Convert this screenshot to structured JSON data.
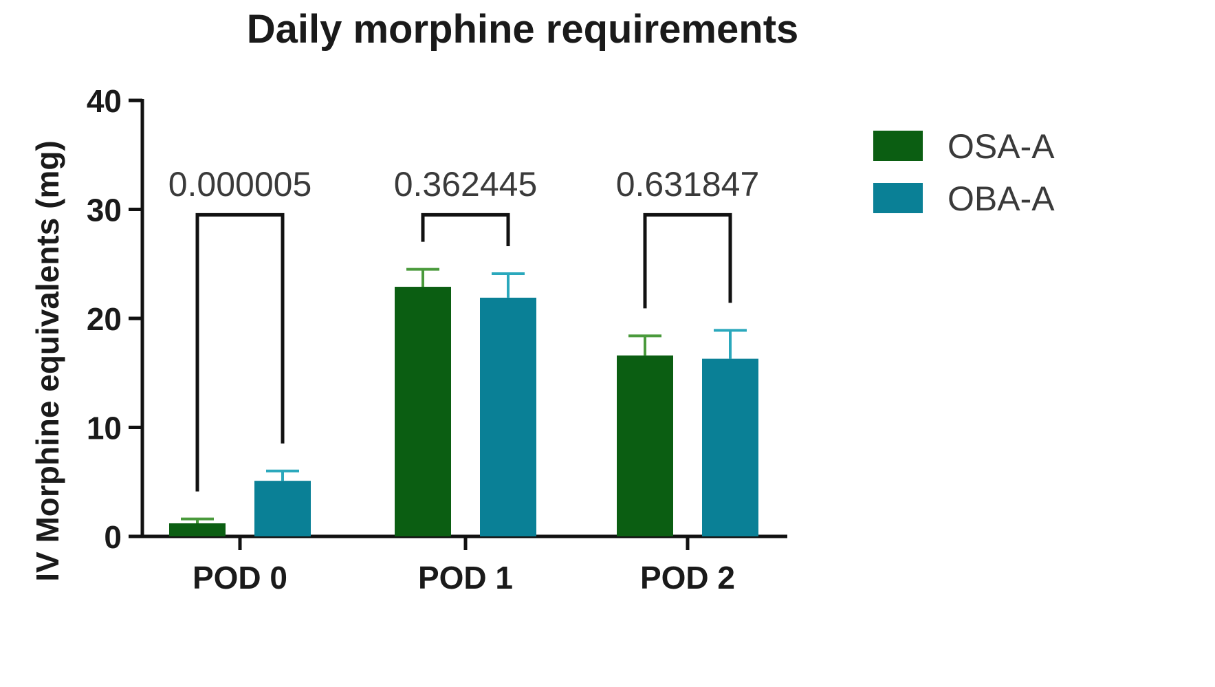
{
  "chart_data": {
    "type": "bar",
    "title": "Daily morphine requirements",
    "xlabel": "",
    "ylabel": "IV Morphine equivalents (mg)",
    "ylim": [
      0,
      40
    ],
    "yticks": [
      0,
      10,
      20,
      30,
      40
    ],
    "categories": [
      "POD 0",
      "POD 1",
      "POD 2"
    ],
    "series": [
      {
        "name": "OSA-A",
        "color": "#0b5e12",
        "errorColor": "#4a9a3c",
        "values": [
          1.2,
          22.9,
          16.6
        ],
        "errors": [
          0.4,
          1.6,
          1.8
        ]
      },
      {
        "name": "OBA-A",
        "color": "#0a8096",
        "errorColor": "#2aa8bc",
        "values": [
          5.1,
          21.9,
          16.3
        ],
        "errors": [
          0.9,
          2.2,
          2.6
        ]
      }
    ],
    "comparisons": [
      {
        "category": "POD 0",
        "p_label": "0.000005",
        "bracket_y": 29.5
      },
      {
        "category": "POD 1",
        "p_label": "0.362445",
        "bracket_y": 29.5
      },
      {
        "category": "POD 2",
        "p_label": "0.631847",
        "bracket_y": 29.5
      }
    ],
    "legend_position": "top-right",
    "grid": false
  }
}
